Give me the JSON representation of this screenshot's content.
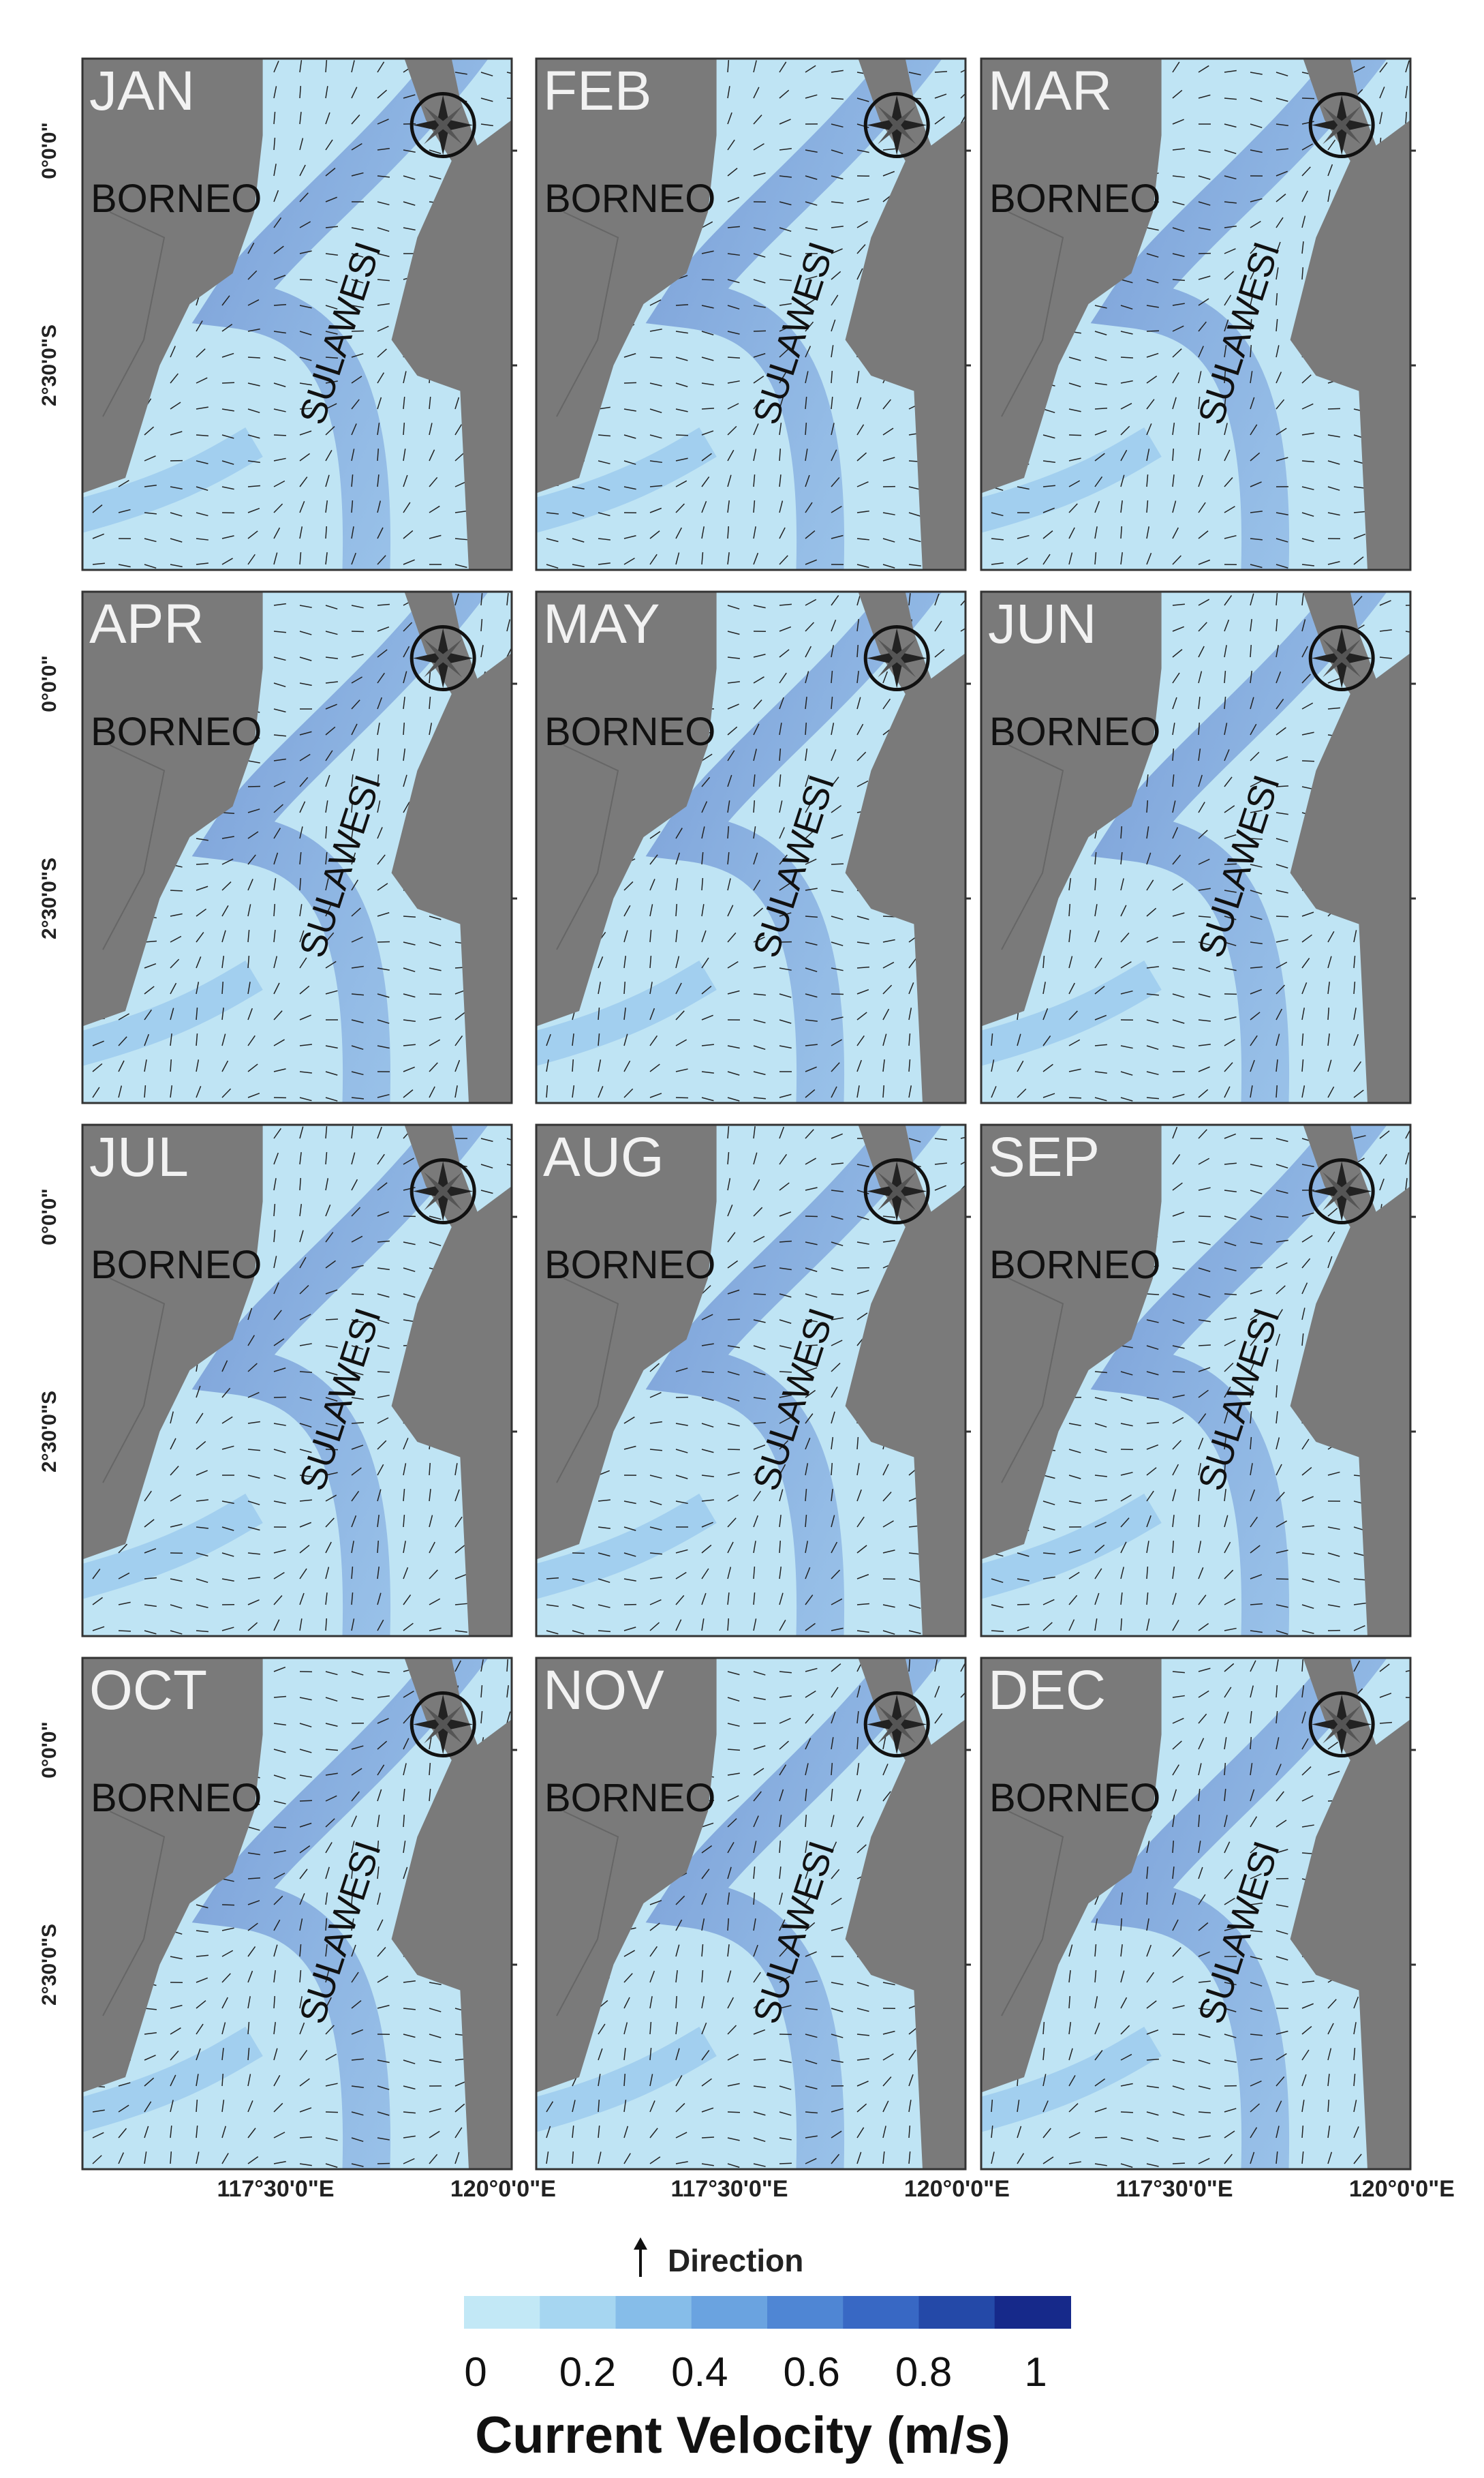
{
  "panels": [
    {
      "month": "JAN",
      "west": "BORNEO",
      "east": "SULAWESI"
    },
    {
      "month": "FEB",
      "west": "BORNEO",
      "east": "SULAWESI"
    },
    {
      "month": "MAR",
      "west": "BORNEO",
      "east": "SULAWESI"
    },
    {
      "month": "APR",
      "west": "BORNEO",
      "east": "SULAWESI"
    },
    {
      "month": "MAY",
      "west": "BORNEO",
      "east": "SULAWESI"
    },
    {
      "month": "JUN",
      "west": "BORNEO",
      "east": "SULAWESI"
    },
    {
      "month": "JUL",
      "west": "BORNEO",
      "east": "SULAWESI"
    },
    {
      "month": "AUG",
      "west": "BORNEO",
      "east": "SULAWESI"
    },
    {
      "month": "SEP",
      "west": "BORNEO",
      "east": "SULAWESI"
    },
    {
      "month": "OCT",
      "west": "BORNEO",
      "east": "SULAWESI"
    },
    {
      "month": "NOV",
      "west": "BORNEO",
      "east": "SULAWESI"
    },
    {
      "month": "DEC",
      "west": "BORNEO",
      "east": "SULAWESI"
    }
  ],
  "lat_labels": [
    "0°0'0\"",
    "2°30'0\"S"
  ],
  "lon_labels": [
    "117°30'0\"E",
    "120°0'0\"E"
  ],
  "legend": {
    "direction_label": "Direction",
    "title": "Current Velocity (m/s)",
    "lim": [
      0,
      1
    ],
    "ticks": [
      0,
      0.2,
      0.4,
      0.6,
      0.8,
      1
    ],
    "colors": [
      "#c2e8f6",
      "#a6d6f1",
      "#86bde9",
      "#6aa3e0",
      "#4f86d4",
      "#3868c4",
      "#2449a8",
      "#16298a"
    ]
  }
}
